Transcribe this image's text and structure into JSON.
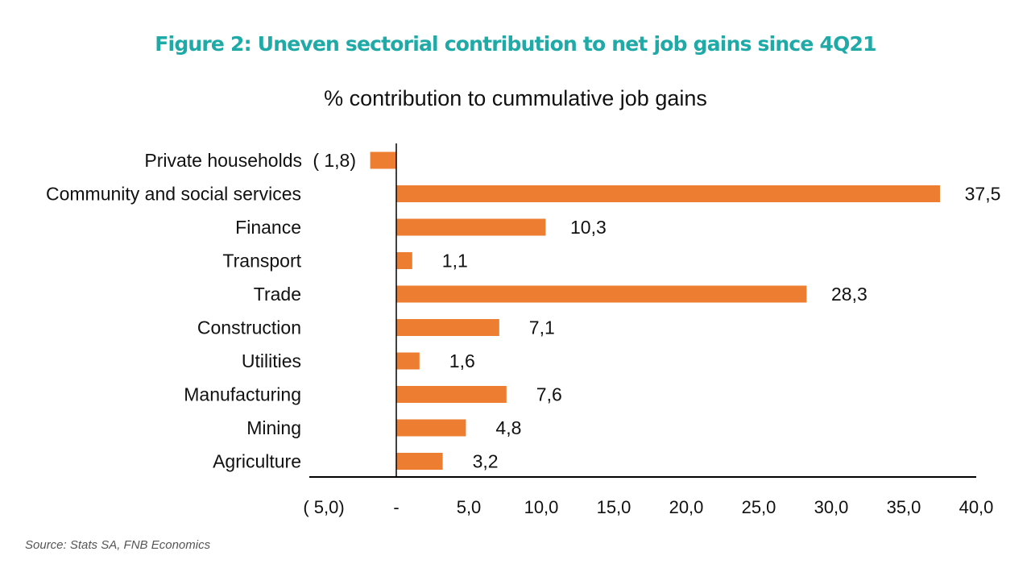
{
  "chart_data": {
    "type": "bar",
    "orientation": "horizontal",
    "title": "Figure 2: Uneven sectorial contribution to net job gains since 4Q21",
    "subtitle": "% contribution to cummulative job gains",
    "xlabel": "",
    "ylabel": "",
    "categories": [
      "Private households",
      "Community and social services",
      "Finance",
      "Transport",
      "Trade",
      "Construction",
      "Utilities",
      "Manufacturing",
      "Mining",
      "Agriculture"
    ],
    "values": [
      -1.8,
      37.5,
      10.3,
      1.1,
      28.3,
      7.1,
      1.6,
      7.6,
      4.8,
      3.2
    ],
    "value_labels": [
      "( 1,8)",
      "37,5",
      "10,3",
      "1,1",
      "28,3",
      "7,1",
      "1,6",
      "7,6",
      "4,8",
      "3,2"
    ],
    "xlim": [
      -6,
      40
    ],
    "xticks": [
      -5,
      0,
      5,
      10,
      15,
      20,
      25,
      30,
      35,
      40
    ],
    "xtick_labels": [
      "( 5,0)",
      "-",
      "5,0",
      "10,0",
      "15,0",
      "20,0",
      "25,0",
      "30,0",
      "35,0",
      "40,0"
    ],
    "grid": false,
    "legend": "none",
    "bar_color": "#ED7D31",
    "title_color": "#1FA9A7",
    "source": "Source: Stats SA, FNB Economics"
  }
}
